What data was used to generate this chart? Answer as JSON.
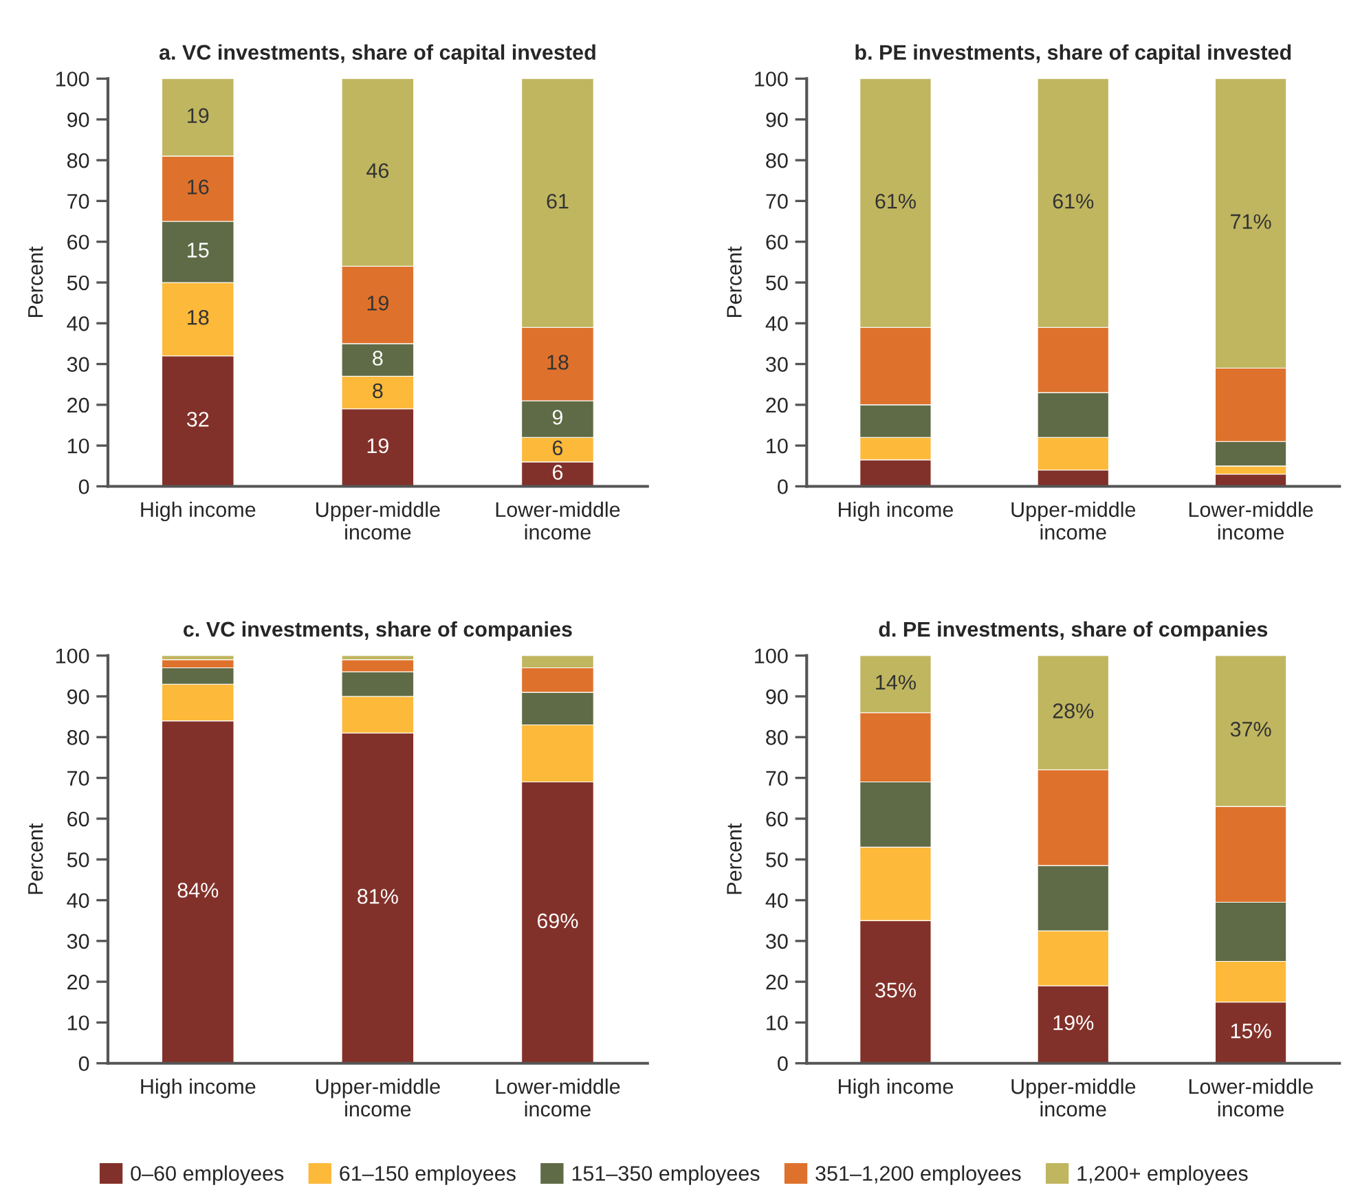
{
  "chart_data": [
    {
      "type": "bar",
      "stacked": true,
      "title": "a. VC investments, share of capital invested",
      "ylabel": "Percent",
      "categories": [
        "High income",
        "Upper-middle\nincome",
        "Lower-middle\nincome"
      ],
      "ylim": [
        0,
        100
      ],
      "yticks": [
        0,
        10,
        20,
        30,
        40,
        50,
        60,
        70,
        80,
        90,
        100
      ],
      "legend": "bottom",
      "data_labels": true,
      "series": [
        {
          "name": "0–60 employees",
          "color": "#82312a",
          "values": [
            32,
            19,
            6
          ]
        },
        {
          "name": "61–150 employees",
          "color": "#fdb93a",
          "values": [
            18,
            8,
            6
          ]
        },
        {
          "name": "151–350 employees",
          "color": "#5f6b46",
          "values": [
            15,
            8,
            9
          ]
        },
        {
          "name": "351–1,200 employees",
          "color": "#de722c",
          "values": [
            16,
            19,
            18
          ]
        },
        {
          "name": "1,200+ employees",
          "color": "#c0b660",
          "values": [
            19,
            46,
            61
          ]
        }
      ]
    },
    {
      "type": "bar",
      "stacked": true,
      "title": "b. PE investments, share of capital invested",
      "ylabel": "Percent",
      "categories": [
        "High income",
        "Upper-middle\nincome",
        "Lower-middle\nincome"
      ],
      "ylim": [
        0,
        100
      ],
      "yticks": [
        0,
        10,
        20,
        30,
        40,
        50,
        60,
        70,
        80,
        90,
        100
      ],
      "legend": "bottom",
      "series": [
        {
          "color": "#82312a",
          "values": [
            6.5,
            4,
            3
          ]
        },
        {
          "color": "#fdb93a",
          "values": [
            5.5,
            8,
            2
          ]
        },
        {
          "color": "#5f6b46",
          "values": [
            8,
            11,
            6
          ]
        },
        {
          "color": "#de722c",
          "values": [
            19,
            16,
            18
          ]
        },
        {
          "color": "#c0b660",
          "values": [
            61,
            61,
            71
          ],
          "value_labels": [
            "61%",
            "61%",
            "71%"
          ]
        }
      ]
    },
    {
      "type": "bar",
      "stacked": true,
      "title": "c. VC investments, share of companies",
      "ylabel": "Percent",
      "categories": [
        "High income",
        "Upper-middle\nincome",
        "Lower-middle\nincome"
      ],
      "ylim": [
        0,
        100
      ],
      "yticks": [
        0,
        10,
        20,
        30,
        40,
        50,
        60,
        70,
        80,
        90,
        100
      ],
      "legend": "bottom",
      "series": [
        {
          "color": "#82312a",
          "values": [
            84,
            81,
            69
          ],
          "value_labels": [
            "84%",
            "81%",
            "69%"
          ]
        },
        {
          "color": "#fdb93a",
          "values": [
            9,
            9,
            14
          ]
        },
        {
          "color": "#5f6b46",
          "values": [
            4,
            6,
            8
          ]
        },
        {
          "color": "#de722c",
          "values": [
            2,
            3,
            6
          ]
        },
        {
          "color": "#c0b660",
          "values": [
            1,
            1,
            3
          ]
        }
      ]
    },
    {
      "type": "bar",
      "stacked": true,
      "title": "d. PE investments, share of companies",
      "ylabel": "Percent",
      "categories": [
        "High income",
        "Upper-middle\nincome",
        "Lower-middle\nincome"
      ],
      "ylim": [
        0,
        100
      ],
      "yticks": [
        0,
        10,
        20,
        30,
        40,
        50,
        60,
        70,
        80,
        90,
        100
      ],
      "legend": "bottom",
      "series": [
        {
          "color": "#82312a",
          "values": [
            35,
            19,
            15
          ],
          "value_labels": [
            "35%",
            "19%",
            "15%"
          ]
        },
        {
          "color": "#fdb93a",
          "values": [
            18,
            13.5,
            10
          ]
        },
        {
          "color": "#5f6b46",
          "values": [
            16,
            16,
            14.5
          ]
        },
        {
          "color": "#de722c",
          "values": [
            17,
            23.5,
            23.5
          ]
        },
        {
          "color": "#c0b660",
          "values": [
            14,
            28,
            37
          ],
          "value_labels": [
            "14%",
            "28%",
            "37%"
          ]
        }
      ]
    }
  ]
}
